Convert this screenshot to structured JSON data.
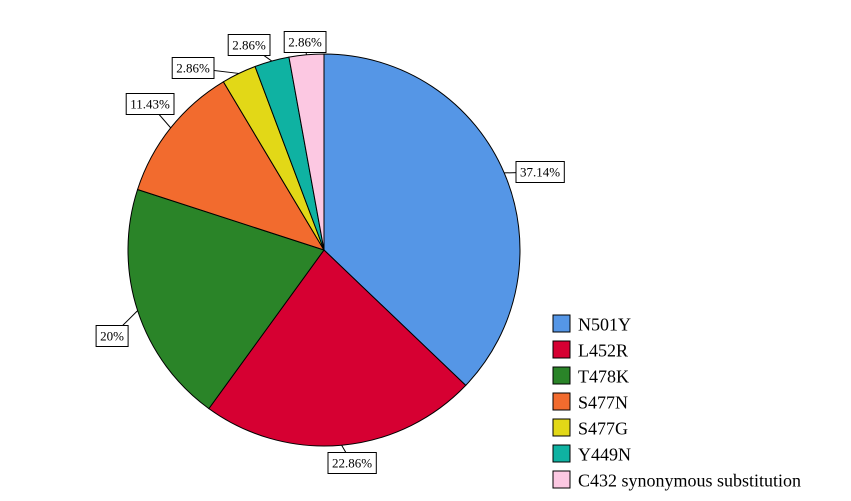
{
  "chart_data": {
    "type": "pie",
    "title": "",
    "start_angle": "12 o'clock",
    "direction": "clockwise",
    "slices": [
      {
        "name": "N501Y",
        "value": 37.14,
        "label": "37.14%",
        "color": "#5596E6"
      },
      {
        "name": "L452R",
        "value": 22.86,
        "label": "22.86%",
        "color": "#D60032"
      },
      {
        "name": "T478K",
        "value": 20,
        "label": "20%",
        "color": "#2A8428"
      },
      {
        "name": "S477N",
        "value": 11.43,
        "label": "11.43%",
        "color": "#F26B2E"
      },
      {
        "name": "S477G",
        "value": 2.86,
        "label": "2.86%",
        "color": "#E2D817"
      },
      {
        "name": "Y449N",
        "value": 2.86,
        "label": "2.86%",
        "color": "#0FB2A2"
      },
      {
        "name": "C432 synonymous substitution",
        "value": 2.86,
        "label": "2.86%",
        "color": "#FCC8E2"
      }
    ],
    "legend": {
      "position": "bottom-right"
    }
  }
}
